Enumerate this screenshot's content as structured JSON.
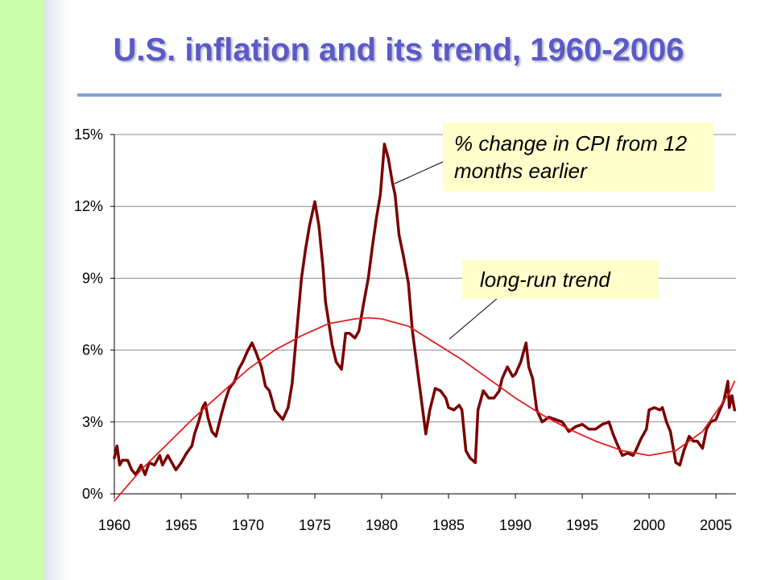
{
  "slide": {
    "title": "U.S. inflation and its trend, 1960-2006",
    "colors": {
      "title": "#5a5ac8",
      "rule": "#7f9fd8",
      "side_bar": "#ccffaa",
      "callout_bg": "#ffffcc"
    }
  },
  "chart_data": {
    "type": "line",
    "title": "",
    "xlabel": "",
    "ylabel": "",
    "xlim": [
      1960,
      2006.5
    ],
    "ylim": [
      0,
      15
    ],
    "x_ticks": [
      1960,
      1965,
      1970,
      1975,
      1980,
      1985,
      1990,
      1995,
      2000,
      2005
    ],
    "y_ticks": [
      0,
      3,
      6,
      9,
      12,
      15
    ],
    "y_tick_labels": [
      "0%",
      "3%",
      "6%",
      "9%",
      "12%",
      "15%"
    ],
    "grid": "horizontal",
    "legend": "none",
    "annotations": [
      {
        "text": "% change in CPI from 12 months earlier",
        "series": "cpi"
      },
      {
        "text": "long-run trend",
        "series": "trend"
      }
    ],
    "series": [
      {
        "id": "cpi",
        "color": "#7a0000",
        "points": [
          [
            1960,
            1.5
          ],
          [
            1960.2,
            2.0
          ],
          [
            1960.4,
            1.2
          ],
          [
            1960.6,
            1.4
          ],
          [
            1961,
            1.4
          ],
          [
            1961.3,
            1.0
          ],
          [
            1961.6,
            0.8
          ],
          [
            1962,
            1.2
          ],
          [
            1962.3,
            0.8
          ],
          [
            1962.6,
            1.3
          ],
          [
            1963,
            1.2
          ],
          [
            1963.4,
            1.6
          ],
          [
            1963.6,
            1.2
          ],
          [
            1964,
            1.6
          ],
          [
            1964.3,
            1.3
          ],
          [
            1964.6,
            1.0
          ],
          [
            1965,
            1.3
          ],
          [
            1965.4,
            1.7
          ],
          [
            1965.8,
            2.0
          ],
          [
            1966,
            2.5
          ],
          [
            1966.3,
            3.0
          ],
          [
            1966.6,
            3.6
          ],
          [
            1966.8,
            3.8
          ],
          [
            1967,
            3.2
          ],
          [
            1967.3,
            2.6
          ],
          [
            1967.6,
            2.4
          ],
          [
            1968,
            3.3
          ],
          [
            1968.3,
            3.9
          ],
          [
            1968.6,
            4.4
          ],
          [
            1969,
            4.7
          ],
          [
            1969.3,
            5.2
          ],
          [
            1969.6,
            5.5
          ],
          [
            1970,
            6.0
          ],
          [
            1970.3,
            6.3
          ],
          [
            1970.6,
            5.9
          ],
          [
            1971,
            5.3
          ],
          [
            1971.3,
            4.5
          ],
          [
            1971.6,
            4.3
          ],
          [
            1972,
            3.5
          ],
          [
            1972.3,
            3.3
          ],
          [
            1972.6,
            3.1
          ],
          [
            1973,
            3.6
          ],
          [
            1973.3,
            4.6
          ],
          [
            1973.6,
            6.5
          ],
          [
            1974,
            9.0
          ],
          [
            1974.3,
            10.2
          ],
          [
            1974.6,
            11.2
          ],
          [
            1975,
            12.2
          ],
          [
            1975.3,
            11.2
          ],
          [
            1975.6,
            9.5
          ],
          [
            1975.8,
            8.0
          ],
          [
            1976,
            7.3
          ],
          [
            1976.3,
            6.2
          ],
          [
            1976.6,
            5.5
          ],
          [
            1977,
            5.2
          ],
          [
            1977.3,
            6.7
          ],
          [
            1977.6,
            6.7
          ],
          [
            1978,
            6.5
          ],
          [
            1978.3,
            6.8
          ],
          [
            1978.6,
            7.8
          ],
          [
            1979,
            9.0
          ],
          [
            1979.3,
            10.3
          ],
          [
            1979.6,
            11.5
          ],
          [
            1979.9,
            12.5
          ],
          [
            1980.2,
            14.6
          ],
          [
            1980.5,
            14.0
          ],
          [
            1980.8,
            13.0
          ],
          [
            1981,
            12.5
          ],
          [
            1981.3,
            10.8
          ],
          [
            1981.6,
            10.0
          ],
          [
            1982,
            8.8
          ],
          [
            1982.3,
            6.8
          ],
          [
            1982.6,
            5.5
          ],
          [
            1983,
            3.8
          ],
          [
            1983.3,
            2.5
          ],
          [
            1983.6,
            3.5
          ],
          [
            1984,
            4.4
          ],
          [
            1984.4,
            4.3
          ],
          [
            1984.8,
            4.0
          ],
          [
            1985,
            3.6
          ],
          [
            1985.4,
            3.5
          ],
          [
            1985.8,
            3.7
          ],
          [
            1986,
            3.5
          ],
          [
            1986.3,
            1.8
          ],
          [
            1986.6,
            1.5
          ],
          [
            1987,
            1.3
          ],
          [
            1987.2,
            3.5
          ],
          [
            1987.6,
            4.3
          ],
          [
            1988,
            4.0
          ],
          [
            1988.4,
            4.0
          ],
          [
            1988.8,
            4.3
          ],
          [
            1989,
            4.8
          ],
          [
            1989.4,
            5.3
          ],
          [
            1989.8,
            4.9
          ],
          [
            1990,
            5.0
          ],
          [
            1990.4,
            5.5
          ],
          [
            1990.8,
            6.3
          ],
          [
            1991,
            5.3
          ],
          [
            1991.3,
            4.8
          ],
          [
            1991.6,
            3.5
          ],
          [
            1992,
            3.0
          ],
          [
            1992.5,
            3.2
          ],
          [
            1993,
            3.1
          ],
          [
            1993.5,
            3.0
          ],
          [
            1994,
            2.6
          ],
          [
            1994.5,
            2.8
          ],
          [
            1995,
            2.9
          ],
          [
            1995.5,
            2.7
          ],
          [
            1996,
            2.7
          ],
          [
            1996.5,
            2.9
          ],
          [
            1997,
            3.0
          ],
          [
            1997.3,
            2.5
          ],
          [
            1997.6,
            2.1
          ],
          [
            1998,
            1.6
          ],
          [
            1998.4,
            1.7
          ],
          [
            1998.8,
            1.6
          ],
          [
            1999,
            1.8
          ],
          [
            1999.4,
            2.3
          ],
          [
            1999.8,
            2.7
          ],
          [
            2000,
            3.5
          ],
          [
            2000.4,
            3.6
          ],
          [
            2000.8,
            3.5
          ],
          [
            2001,
            3.6
          ],
          [
            2001.3,
            3.0
          ],
          [
            2001.6,
            2.6
          ],
          [
            2002,
            1.3
          ],
          [
            2002.3,
            1.2
          ],
          [
            2002.6,
            1.8
          ],
          [
            2003,
            2.4
          ],
          [
            2003.3,
            2.2
          ],
          [
            2003.6,
            2.2
          ],
          [
            2004,
            1.9
          ],
          [
            2004.3,
            2.7
          ],
          [
            2004.6,
            3.0
          ],
          [
            2005,
            3.1
          ],
          [
            2005.3,
            3.5
          ],
          [
            2005.6,
            3.9
          ],
          [
            2005.9,
            4.7
          ],
          [
            2006,
            3.6
          ],
          [
            2006.2,
            4.1
          ],
          [
            2006.4,
            3.5
          ]
        ]
      },
      {
        "id": "trend",
        "color": "#e02020",
        "points": [
          [
            1960,
            -0.3
          ],
          [
            1962,
            1.0
          ],
          [
            1964,
            2.1
          ],
          [
            1966,
            3.2
          ],
          [
            1968,
            4.2
          ],
          [
            1970,
            5.2
          ],
          [
            1972,
            6.0
          ],
          [
            1974,
            6.6
          ],
          [
            1976,
            7.1
          ],
          [
            1978,
            7.3
          ],
          [
            1979,
            7.35
          ],
          [
            1980,
            7.3
          ],
          [
            1982,
            7.0
          ],
          [
            1984,
            6.3
          ],
          [
            1986,
            5.6
          ],
          [
            1988,
            4.8
          ],
          [
            1990,
            4.0
          ],
          [
            1992,
            3.3
          ],
          [
            1994,
            2.7
          ],
          [
            1996,
            2.2
          ],
          [
            1998,
            1.8
          ],
          [
            2000,
            1.6
          ],
          [
            2002,
            1.8
          ],
          [
            2004,
            2.6
          ],
          [
            2006,
            4.2
          ],
          [
            2006.4,
            4.7
          ]
        ]
      }
    ]
  }
}
